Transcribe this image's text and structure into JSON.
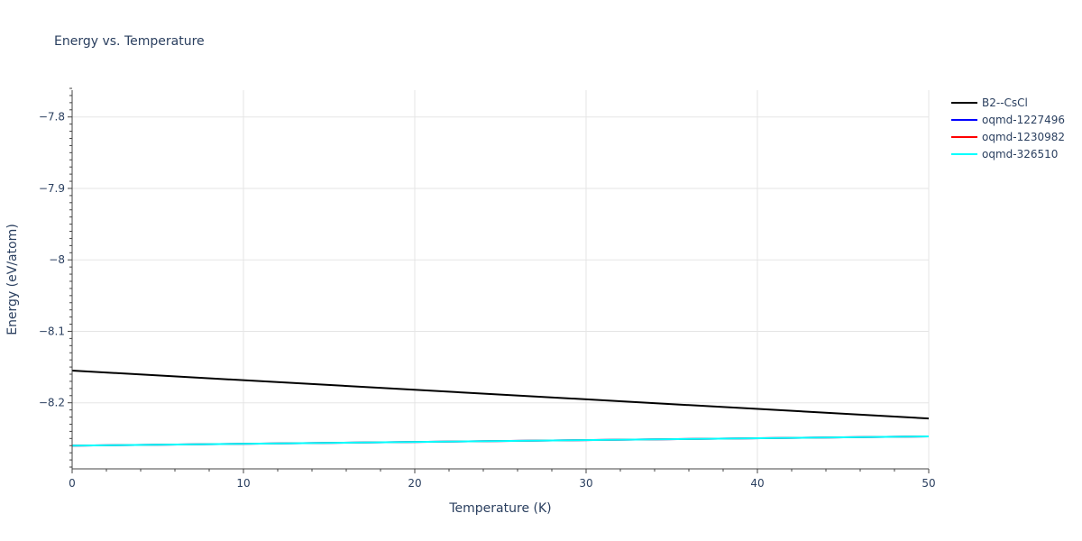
{
  "chart_data": {
    "type": "line",
    "title": "Energy vs. Temperature",
    "xlabel": "Temperature (K)",
    "ylabel": "Energy (eV/atom)",
    "xlim": [
      0,
      50
    ],
    "ylim": [
      -8.2925,
      -7.7625
    ],
    "x_ticks": [
      0,
      10,
      20,
      30,
      40,
      50
    ],
    "y_ticks": [
      -7.8,
      -7.9,
      -8,
      -8.1,
      -8.2
    ],
    "y_tick_labels": [
      "−7.8",
      "−7.9",
      "−8",
      "−8.1",
      "−8.2"
    ],
    "grid": true,
    "legend_position": "top-right",
    "series": [
      {
        "name": "B2--CsCl",
        "color": "#000000",
        "x": [
          0,
          50
        ],
        "y": [
          -8.155,
          -8.222
        ]
      },
      {
        "name": "oqmd-1227496",
        "color": "#0000ff",
        "x": [
          0,
          50
        ],
        "y": [
          -8.26,
          -8.247
        ]
      },
      {
        "name": "oqmd-1230982",
        "color": "#ff0000",
        "x": [
          0,
          50
        ],
        "y": [
          -8.26,
          -8.247
        ]
      },
      {
        "name": "oqmd-326510",
        "color": "#00ffff",
        "x": [
          0,
          50
        ],
        "y": [
          -8.26,
          -8.247
        ]
      }
    ]
  }
}
